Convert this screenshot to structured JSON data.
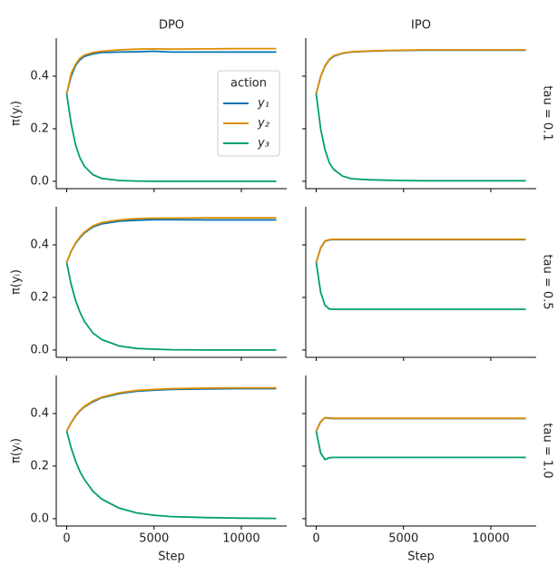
{
  "chart_data": [
    {
      "type": "line",
      "title": "DPO",
      "ylabel": "π(yᵢ)",
      "legend_title": "action",
      "x": [
        0,
        250,
        500,
        750,
        1000,
        1500,
        2000,
        3000,
        4000,
        5000,
        6000,
        8000,
        10000,
        12000
      ],
      "series": [
        {
          "name": "y₁",
          "color": "#0173b2",
          "values": [
            0.333,
            0.4,
            0.44,
            0.462,
            0.475,
            0.485,
            0.49,
            0.492,
            0.493,
            0.495,
            0.492,
            0.492,
            0.492,
            0.492
          ]
        },
        {
          "name": "y₂",
          "color": "#de8f05",
          "values": [
            0.333,
            0.41,
            0.445,
            0.468,
            0.48,
            0.49,
            0.495,
            0.5,
            0.503,
            0.504,
            0.503,
            0.504,
            0.505,
            0.505
          ]
        },
        {
          "name": "y₃",
          "color": "#029e73",
          "values": [
            0.333,
            0.22,
            0.14,
            0.09,
            0.058,
            0.025,
            0.011,
            0.003,
            0.001,
            0,
            0,
            0,
            0,
            0
          ]
        }
      ],
      "xlim": [
        -600,
        12600
      ],
      "ylim": [
        -0.028,
        0.545
      ],
      "xticks": [
        0,
        5000,
        10000
      ],
      "yticks": [
        {
          "value": 0,
          "label": "0.0"
        },
        0.2,
        0.4
      ]
    },
    {
      "type": "line",
      "title": "IPO",
      "row_label": "tau = 0.1",
      "x": [
        0,
        250,
        500,
        750,
        1000,
        1500,
        2000,
        3000,
        4000,
        5000,
        6000,
        8000,
        10000,
        12000
      ],
      "series": [
        {
          "color": "#0173b2",
          "values": [
            0.333,
            0.398,
            0.438,
            0.463,
            0.476,
            0.487,
            0.492,
            0.495,
            0.497,
            0.498,
            0.499,
            0.499,
            0.499,
            0.499
          ]
        },
        {
          "color": "#de8f05",
          "values": [
            0.333,
            0.4,
            0.44,
            0.465,
            0.478,
            0.488,
            0.493,
            0.496,
            0.498,
            0.499,
            0.5,
            0.5,
            0.5,
            0.5
          ]
        },
        {
          "color": "#029e73",
          "values": [
            0.333,
            0.2,
            0.12,
            0.07,
            0.045,
            0.02,
            0.01,
            0.006,
            0.004,
            0.003,
            0.002,
            0.002,
            0.002,
            0.002
          ]
        }
      ],
      "xlim": [
        -600,
        12600
      ],
      "ylim": [
        -0.028,
        0.545
      ],
      "xticks": [
        0,
        5000,
        10000
      ],
      "yticks": [
        {
          "value": 0,
          "label": "0.0"
        },
        0.2,
        0.4
      ]
    },
    {
      "type": "line",
      "ylabel": "π(yᵢ)",
      "x": [
        0,
        250,
        500,
        750,
        1000,
        1500,
        2000,
        3000,
        4000,
        5000,
        6000,
        8000,
        10000,
        12000
      ],
      "series": [
        {
          "color": "#0173b2",
          "values": [
            0.333,
            0.375,
            0.405,
            0.427,
            0.445,
            0.468,
            0.48,
            0.49,
            0.494,
            0.496,
            0.496,
            0.495,
            0.495,
            0.495
          ]
        },
        {
          "color": "#de8f05",
          "values": [
            0.333,
            0.377,
            0.407,
            0.43,
            0.448,
            0.472,
            0.485,
            0.495,
            0.5,
            0.502,
            0.502,
            0.503,
            0.503,
            0.503
          ]
        },
        {
          "color": "#029e73",
          "values": [
            0.333,
            0.25,
            0.19,
            0.145,
            0.11,
            0.065,
            0.04,
            0.015,
            0.006,
            0.003,
            0.001,
            0,
            0,
            0
          ]
        }
      ],
      "xlim": [
        -600,
        12600
      ],
      "ylim": [
        -0.028,
        0.545
      ],
      "xticks": [
        0,
        5000,
        10000
      ],
      "yticks": [
        {
          "value": 0,
          "label": "0.0"
        },
        0.2,
        0.4
      ]
    },
    {
      "type": "line",
      "row_label": "tau = 0.5",
      "x": [
        0,
        250,
        500,
        750,
        1000,
        1500,
        2000,
        3000,
        4000,
        5000,
        6000,
        8000,
        10000,
        12000
      ],
      "series": [
        {
          "color": "#0173b2",
          "values": [
            0.333,
            0.388,
            0.414,
            0.419,
            0.42,
            0.42,
            0.42,
            0.42,
            0.42,
            0.42,
            0.42,
            0.42,
            0.42,
            0.42
          ]
        },
        {
          "color": "#de8f05",
          "values": [
            0.333,
            0.39,
            0.415,
            0.42,
            0.421,
            0.421,
            0.421,
            0.421,
            0.421,
            0.421,
            0.421,
            0.421,
            0.421,
            0.421
          ]
        },
        {
          "color": "#029e73",
          "values": [
            0.333,
            0.22,
            0.17,
            0.156,
            0.155,
            0.155,
            0.155,
            0.155,
            0.155,
            0.155,
            0.155,
            0.155,
            0.155,
            0.155
          ]
        }
      ],
      "xlim": [
        -600,
        12600
      ],
      "ylim": [
        -0.028,
        0.545
      ],
      "xticks": [
        0,
        5000,
        10000
      ],
      "yticks": [
        {
          "value": 0,
          "label": "0.0"
        },
        0.2,
        0.4
      ]
    },
    {
      "type": "line",
      "ylabel": "π(yᵢ)",
      "xlabel": "Step",
      "x": [
        0,
        250,
        500,
        750,
        1000,
        1500,
        2000,
        3000,
        4000,
        5000,
        6000,
        8000,
        10000,
        12000
      ],
      "series": [
        {
          "color": "#0173b2",
          "values": [
            0.333,
            0.365,
            0.39,
            0.41,
            0.425,
            0.445,
            0.46,
            0.476,
            0.485,
            0.489,
            0.492,
            0.494,
            0.495,
            0.495
          ]
        },
        {
          "color": "#de8f05",
          "values": [
            0.333,
            0.366,
            0.392,
            0.412,
            0.427,
            0.448,
            0.462,
            0.479,
            0.488,
            0.492,
            0.495,
            0.497,
            0.498,
            0.498
          ]
        },
        {
          "color": "#029e73",
          "values": [
            0.333,
            0.27,
            0.22,
            0.18,
            0.15,
            0.105,
            0.075,
            0.04,
            0.022,
            0.013,
            0.008,
            0.004,
            0.002,
            0.001
          ]
        }
      ],
      "xlim": [
        -600,
        12600
      ],
      "ylim": [
        -0.028,
        0.545
      ],
      "xticks": [
        0,
        5000,
        10000
      ],
      "yticks": [
        {
          "value": 0,
          "label": "0.0"
        },
        0.2,
        0.4
      ]
    },
    {
      "type": "line",
      "row_label": "tau = 1.0",
      "xlabel": "Step",
      "x": [
        0,
        250,
        500,
        750,
        1000,
        1500,
        2000,
        3000,
        4000,
        5000,
        6000,
        8000,
        10000,
        12000
      ],
      "series": [
        {
          "color": "#0173b2",
          "values": [
            0.333,
            0.369,
            0.384,
            0.382,
            0.381,
            0.381,
            0.381,
            0.381,
            0.381,
            0.381,
            0.381,
            0.381,
            0.381,
            0.381
          ]
        },
        {
          "color": "#de8f05",
          "values": [
            0.333,
            0.37,
            0.385,
            0.383,
            0.382,
            0.382,
            0.382,
            0.382,
            0.382,
            0.382,
            0.382,
            0.382,
            0.382,
            0.382
          ]
        },
        {
          "color": "#029e73",
          "values": [
            0.333,
            0.25,
            0.225,
            0.232,
            0.233,
            0.233,
            0.233,
            0.233,
            0.233,
            0.233,
            0.233,
            0.233,
            0.233,
            0.233
          ]
        }
      ],
      "xlim": [
        -600,
        12600
      ],
      "ylim": [
        -0.028,
        0.545
      ],
      "xticks": [
        0,
        5000,
        10000
      ],
      "yticks": [
        {
          "value": 0,
          "label": "0.0"
        },
        0.2,
        0.4
      ]
    }
  ]
}
